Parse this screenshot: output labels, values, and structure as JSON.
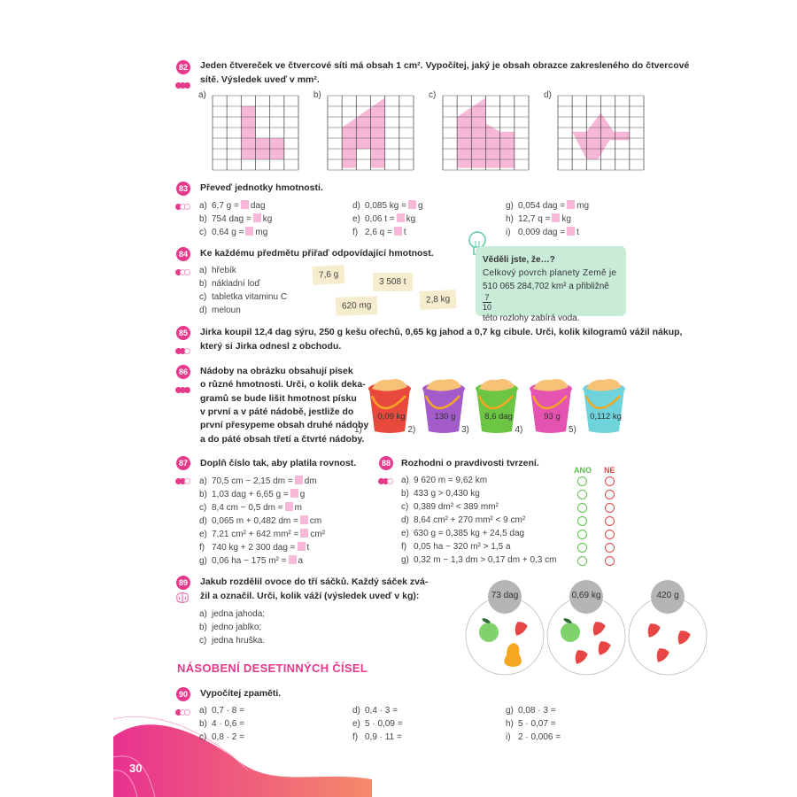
{
  "page_number": "30",
  "colors": {
    "accent": "#e5398b",
    "highlight_box": "#f7b9d7",
    "info_box": "#c9ecd8",
    "tag": "#f6edcf",
    "yes": "#5cc24a",
    "no": "#e04848"
  },
  "ex82": {
    "number": "82",
    "difficulty": 3,
    "text_line1": "Jeden čtvereček ve čtvercové síti má obsah 1 cm². Vypočítej, jaký je obsah obrazce zakresleného do čtvercové",
    "text_line2": "sítě. Výsledek uveď v mm².",
    "grids": [
      {
        "label": "a)"
      },
      {
        "label": "b)"
      },
      {
        "label": "c)"
      },
      {
        "label": "d)"
      }
    ]
  },
  "ex83": {
    "number": "83",
    "difficulty": 1,
    "text": "Převeď jednotky hmotnosti.",
    "items": [
      {
        "letter": "a)",
        "left": "6,7 g =",
        "right": "dag"
      },
      {
        "letter": "b)",
        "left": "754 dag =",
        "right": "kg"
      },
      {
        "letter": "c)",
        "left": "0,64 g =",
        "right": "mg"
      },
      {
        "letter": "d)",
        "left": "0,085 kg =",
        "right": "g"
      },
      {
        "letter": "e)",
        "left": "0,06 t =",
        "right": "kg"
      },
      {
        "letter": "f)",
        "left": "2,6 q =",
        "right": "t"
      },
      {
        "letter": "g)",
        "left": "0,054 dag =",
        "right": "mg"
      },
      {
        "letter": "h)",
        "left": "12,7 q =",
        "right": "kg"
      },
      {
        "letter": "i)",
        "left": "0,009 dag =",
        "right": "t"
      }
    ]
  },
  "ex84": {
    "number": "84",
    "difficulty": 1,
    "text": "Ke každému předmětu přiřaď odpovídající hmotnost.",
    "items": [
      {
        "letter": "a)",
        "text": "hřebík"
      },
      {
        "letter": "b)",
        "text": "nákladní loď"
      },
      {
        "letter": "c)",
        "text": "tabletka vitaminu C"
      },
      {
        "letter": "d)",
        "text": "meloun"
      }
    ],
    "tags": [
      "7,6 g",
      "3 508 t",
      "620 mg",
      "2,8 kg"
    ]
  },
  "info": {
    "title": "Věděli jste, že…?",
    "line1": "Celkový povrch planety Země je",
    "line2": "510 065 284,702 km² a přibližně",
    "frac_num": "7",
    "frac_den": "10",
    "line3": "této rozlohy zabírá voda."
  },
  "ex85": {
    "number": "85",
    "difficulty": 2,
    "text_line1": "Jirka koupil 12,4 dag sýru, 250 g kešu ořechů, 0,65 kg jahod a 0,7 kg cibule. Urči, kolik kilogramů vážil nákup,",
    "text_line2": "který si Jirka odnesl z obchodu."
  },
  "ex86": {
    "number": "86",
    "difficulty": 3,
    "lines": [
      "Nádoby na obrázku obsahují písek",
      "o různé hmotnosti. Urči, o kolik deka-",
      "gramů se bude lišit hmotnost písku",
      "v první a v páté nádobě, jestliže do",
      "první přesypeme obsah druhé nádoby",
      "a do páté obsah třetí a čtvrté nádoby."
    ],
    "buckets": [
      {
        "label": "1)",
        "weight": "0,09 kg",
        "color": "#e8493c"
      },
      {
        "label": "2)",
        "weight": "130 g",
        "color": "#a35bc9"
      },
      {
        "label": "3)",
        "weight": "8,6 dag",
        "color": "#6cc644"
      },
      {
        "label": "4)",
        "weight": "93 g",
        "color": "#e553b0"
      },
      {
        "label": "5)",
        "weight": "0,112 kg",
        "color": "#6fd3dc"
      }
    ]
  },
  "ex87": {
    "number": "87",
    "difficulty": 2,
    "text": "Doplň číslo tak, aby platila rovnost.",
    "items": [
      {
        "letter": "a)",
        "left": "70,5 cm − 2,15 dm =",
        "right": "dm"
      },
      {
        "letter": "b)",
        "left": "1,03 dag + 6,65 g =",
        "right": "g"
      },
      {
        "letter": "c)",
        "left": "8,4 cm − 0,5 dm =",
        "right": "m"
      },
      {
        "letter": "d)",
        "left": "0,065 m + 0,482 dm =",
        "right": "cm"
      },
      {
        "letter": "e)",
        "left": "7,21 cm² + 642 mm² =",
        "right": "cm²"
      },
      {
        "letter": "f)",
        "left": "740 kg + 2 300 dag =",
        "right": "t"
      },
      {
        "letter": "g)",
        "left": "0,06 ha − 175 m² =",
        "right": "a"
      }
    ]
  },
  "ex88": {
    "number": "88",
    "difficulty": 2,
    "text": "Rozhodni o pravdivosti tvrzení.",
    "yes_label": "ANO",
    "no_label": "NE",
    "items": [
      {
        "letter": "a)",
        "text": "9 620 m = 9,62 km"
      },
      {
        "letter": "b)",
        "text": "433 g > 0,430 kg"
      },
      {
        "letter": "c)",
        "text": "0,389 dm² < 389 mm²"
      },
      {
        "letter": "d)",
        "text": "8,64 cm² + 270 mm² < 9 cm²"
      },
      {
        "letter": "e)",
        "text": "630 g = 0,385 kg + 24,5 dag"
      },
      {
        "letter": "f)",
        "text": "0,05 ha − 320 m² > 1,5 a"
      },
      {
        "letter": "g)",
        "text": "0,32 m − 1,3 dm > 0,17 dm + 0,3 cm"
      }
    ]
  },
  "ex89": {
    "number": "89",
    "icon": "brain-icon",
    "text_line1": "Jakub rozdělil ovoce  do tří sáčků. Každý sáček zvá-",
    "text_line2": "žil a označil. Urči, kolik váží (výsledek uveď v kg):",
    "items": [
      {
        "letter": "a)",
        "text": "jedna jahoda;"
      },
      {
        "letter": "b)",
        "text": "jedno jablko;"
      },
      {
        "letter": "c)",
        "text": "jedna hruška."
      }
    ],
    "bags": [
      {
        "weight": "73 dag",
        "contents": [
          "apple",
          "strawberry",
          "pear"
        ]
      },
      {
        "weight": "0,69 kg",
        "contents": [
          "apple",
          "strawberry",
          "strawberry",
          "strawberry"
        ]
      },
      {
        "weight": "420 g",
        "contents": [
          "strawberry",
          "strawberry",
          "strawberry"
        ]
      }
    ]
  },
  "section_heading": "NÁSOBENÍ DESETINNÝCH ČÍSEL",
  "ex90": {
    "number": "90",
    "difficulty": 1,
    "text": "Vypočítej zpaměti.",
    "items": [
      {
        "letter": "a)",
        "text": "0,7 · 8 ="
      },
      {
        "letter": "b)",
        "text": "4 · 0,6 ="
      },
      {
        "letter": "c)",
        "text": "0,8 · 2 ="
      },
      {
        "letter": "d)",
        "text": "0,4 · 3 ="
      },
      {
        "letter": "e)",
        "text": "5 · 0,09 ="
      },
      {
        "letter": "f)",
        "text": "0,9 · 11 ="
      },
      {
        "letter": "g)",
        "text": "0,08 · 3 ="
      },
      {
        "letter": "h)",
        "text": "5 · 0,07 ="
      },
      {
        "letter": "i)",
        "text": "2 · 0,006 ="
      }
    ]
  }
}
